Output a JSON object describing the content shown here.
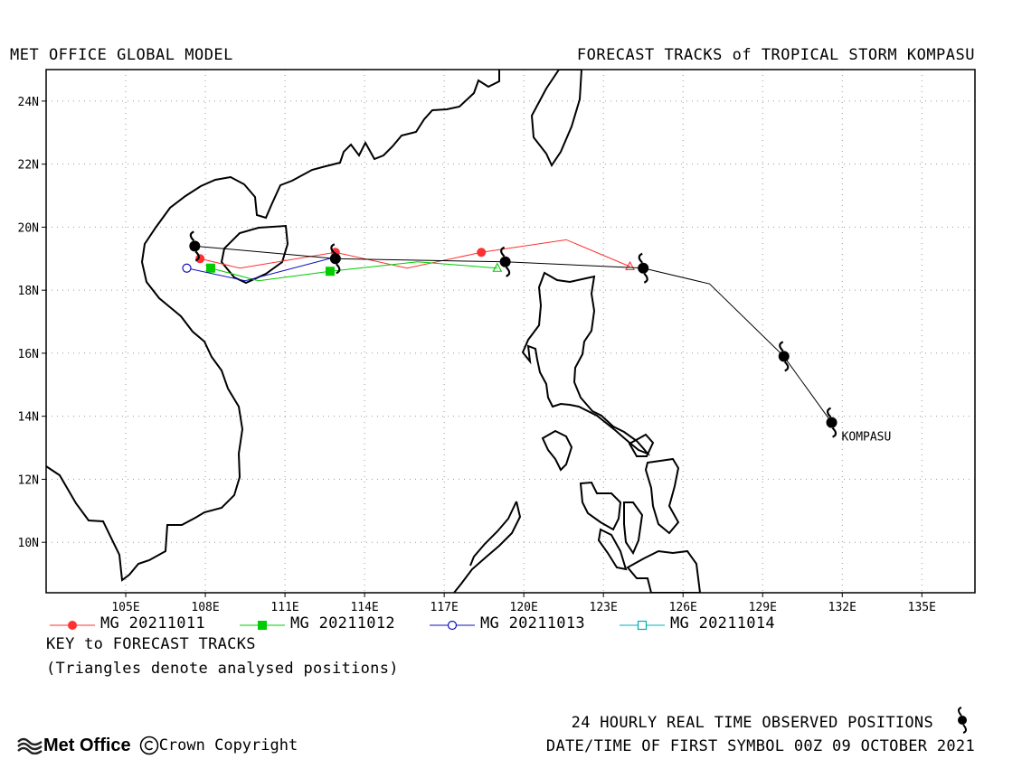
{
  "header": {
    "left_title": "MET OFFICE GLOBAL MODEL",
    "right_title": "FORECAST TRACKS of TROPICAL STORM KOMPASU"
  },
  "chart_data": {
    "type": "map-track",
    "xlim": [
      102,
      137
    ],
    "ylim": [
      8.4,
      25
    ],
    "x_ticks": [
      105,
      108,
      111,
      114,
      117,
      120,
      123,
      126,
      129,
      132,
      135
    ],
    "x_tick_labels": [
      "105E",
      "108E",
      "111E",
      "114E",
      "117E",
      "120E",
      "123E",
      "126E",
      "129E",
      "132E",
      "135E"
    ],
    "y_ticks": [
      10,
      12,
      14,
      16,
      18,
      20,
      22,
      24
    ],
    "y_tick_labels": [
      "10N",
      "12N",
      "14N",
      "16N",
      "18N",
      "20N",
      "22N",
      "24N"
    ],
    "grid": true,
    "storm_label": "KOMPASU",
    "observed_track": [
      [
        131.6,
        13.8
      ],
      [
        129.8,
        15.9
      ],
      [
        127.0,
        18.2
      ],
      [
        124.5,
        18.7
      ],
      [
        119.3,
        18.9
      ],
      [
        112.9,
        19.0
      ],
      [
        107.6,
        19.4
      ]
    ],
    "observed_positions": [
      [
        131.6,
        13.8
      ],
      [
        129.8,
        15.9
      ],
      [
        124.5,
        18.7
      ],
      [
        119.3,
        18.9
      ],
      [
        112.9,
        19.0
      ],
      [
        107.6,
        19.4
      ]
    ],
    "series": [
      {
        "name": "MG 20211011",
        "color": "#ff3030",
        "marker": "filled-circle",
        "track": [
          [
            124.0,
            18.75
          ],
          [
            121.6,
            19.6
          ],
          [
            118.4,
            19.2
          ],
          [
            115.6,
            18.7
          ],
          [
            112.9,
            19.2
          ],
          [
            109.3,
            18.7
          ],
          [
            107.8,
            19.0
          ]
        ],
        "markers": [
          [
            118.4,
            19.2
          ],
          [
            112.9,
            19.2
          ],
          [
            107.8,
            19.0
          ]
        ],
        "analysed": [
          124.0,
          18.75
        ]
      },
      {
        "name": "MG 20211012",
        "color": "#00cc00",
        "marker": "filled-square",
        "track": [
          [
            119.0,
            18.7
          ],
          [
            116.0,
            18.9
          ],
          [
            112.7,
            18.6
          ],
          [
            110.0,
            18.3
          ],
          [
            108.2,
            18.7
          ]
        ],
        "markers": [
          [
            112.7,
            18.6
          ],
          [
            108.2,
            18.7
          ]
        ],
        "analysed": [
          119.0,
          18.7
        ]
      },
      {
        "name": "MG 20211013",
        "color": "#1010c0",
        "marker": "open-circle",
        "track": [
          [
            112.9,
            19.05
          ],
          [
            109.5,
            18.3
          ],
          [
            107.3,
            18.7
          ]
        ],
        "markers": [
          [
            107.3,
            18.7
          ]
        ],
        "analysed": [
          112.9,
          19.05
        ]
      },
      {
        "name": "MG 20211014",
        "color": "#00b0b0",
        "marker": "open-square",
        "track": [
          [
            107.6,
            19.4
          ]
        ],
        "markers": [],
        "analysed": [
          107.6,
          19.4
        ]
      }
    ]
  },
  "footer": {
    "key_title": "KEY to FORECAST TRACKS",
    "key_note": "(Triangles denote analysed positions)",
    "observed_note": "24 HOURLY REAL TIME OBSERVED POSITIONS",
    "datetime_note": "DATE/TIME OF FIRST SYMBOL 00Z 09 OCTOBER 2021",
    "logo": "Met Office",
    "copyright": "Crown Copyright"
  }
}
